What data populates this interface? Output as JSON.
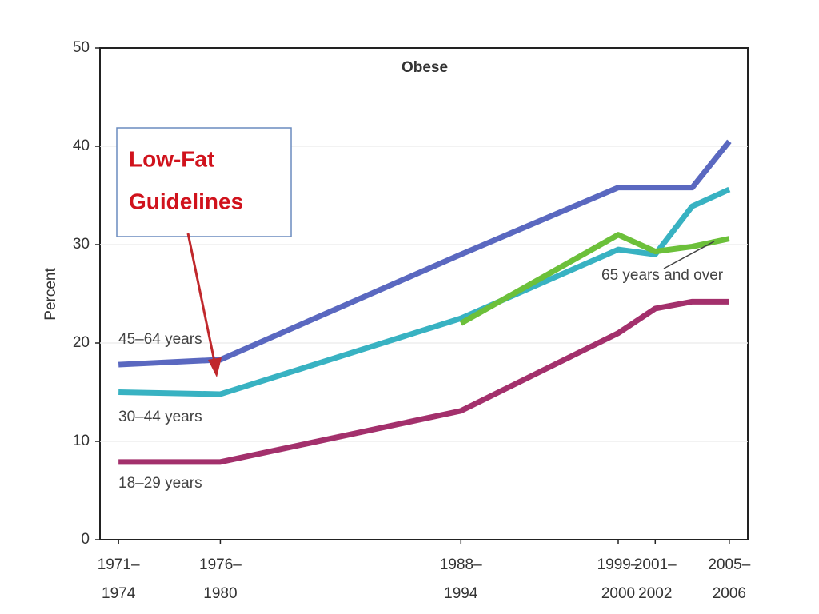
{
  "chart_data": {
    "type": "line",
    "title": "Obese",
    "y_label": "Percent",
    "x": [
      1972.5,
      1978,
      1991,
      1999.5,
      2001.5,
      2003.5,
      2005.5
    ],
    "xlim": [
      1971.5,
      2006.5
    ],
    "xticks": [
      {
        "value": 1972.5,
        "label": [
          "1971–",
          "1974"
        ]
      },
      {
        "value": 1978,
        "label": [
          "1976–",
          "1980"
        ]
      },
      {
        "value": 1991,
        "label": [
          "1988–",
          "1994"
        ]
      },
      {
        "value": 1999.5,
        "label": [
          "1999–",
          "2000"
        ]
      },
      {
        "value": 2001.5,
        "label": [
          "2001–",
          "2002"
        ]
      },
      {
        "value": 2005.5,
        "label": [
          "2005–",
          "2006"
        ]
      }
    ],
    "ylim": [
      0,
      50
    ],
    "yticks": [
      0,
      10,
      20,
      30,
      40,
      50
    ],
    "grid": true,
    "series": [
      {
        "name": "45–64 years",
        "color": "#5a68c0",
        "values": [
          17.8,
          18.3,
          29,
          35.8,
          35.8,
          35.8,
          40.5
        ]
      },
      {
        "name": "30–44 years",
        "color": "#38b2c2",
        "values": [
          15,
          14.8,
          22.5,
          29.5,
          29,
          33.9,
          35.6
        ]
      },
      {
        "name": "18–29 years",
        "color": "#a3306c",
        "values": [
          7.9,
          7.9,
          13.1,
          21,
          23.5,
          24.2,
          24.2
        ]
      },
      {
        "name": "65 years and over",
        "color": "#6cc03a",
        "values": [
          null,
          null,
          22,
          31,
          29.3,
          29.8,
          30.6
        ]
      }
    ],
    "annotation": [
      "Low-Fat",
      "Guidelines"
    ]
  }
}
